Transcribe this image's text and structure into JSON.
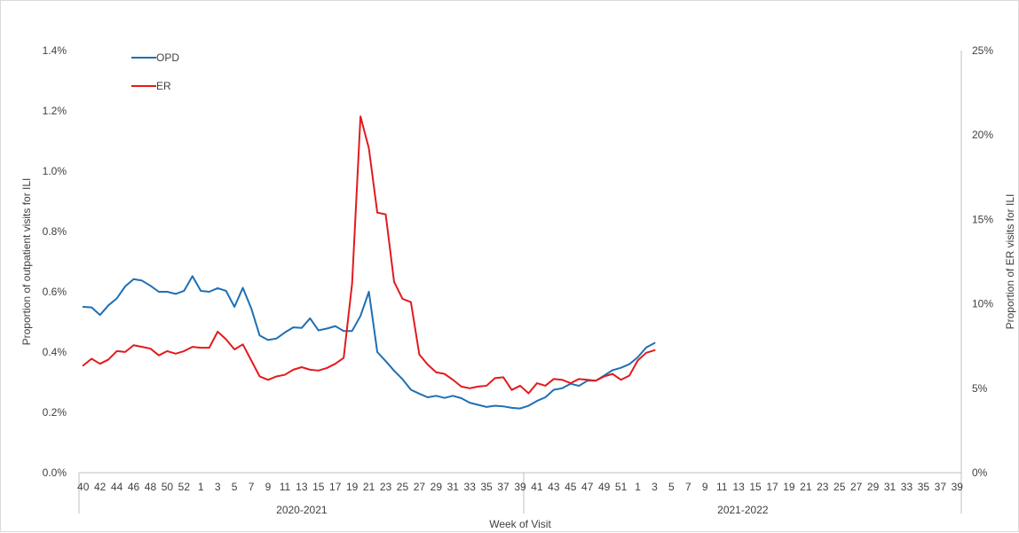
{
  "chart_data": {
    "type": "line",
    "title": "",
    "xlabel": "Week of Visit",
    "ylabel": "Proportion of outpatient visits for ILI",
    "y2label": "Proportion of ER visits for ILI",
    "ylim": [
      0,
      1.4
    ],
    "y2lim": [
      0,
      25
    ],
    "y_ticks": [
      "0.0%",
      "0.2%",
      "0.4%",
      "0.6%",
      "0.8%",
      "1.0%",
      "1.2%",
      "1.4%"
    ],
    "y2_ticks": [
      "0%",
      "5%",
      "10%",
      "15%",
      "20%",
      "25%"
    ],
    "x_tick_labels": [
      "40",
      "42",
      "44",
      "46",
      "48",
      "50",
      "52",
      "1",
      "3",
      "5",
      "7",
      "9",
      "11",
      "13",
      "15",
      "17",
      "19",
      "21",
      "23",
      "25",
      "27",
      "29",
      "31",
      "33",
      "35",
      "37",
      "39",
      "41",
      "43",
      "45",
      "47",
      "49",
      "51",
      "1",
      "3",
      "5",
      "7",
      "9",
      "11",
      "13",
      "15",
      "17",
      "19",
      "21",
      "23",
      "25",
      "27",
      "29",
      "31",
      "33",
      "35",
      "37",
      "39"
    ],
    "season_groups": [
      {
        "label": "2020-2021",
        "n_weeks": 53
      },
      {
        "label": "2021-2022",
        "n_weeks": 52
      }
    ],
    "total_weeks": 105,
    "grid": false,
    "legend_position": "top-left",
    "series": [
      {
        "name": "OPD",
        "axis": "left",
        "color": "#1f6fb4",
        "values": [
          0.55,
          0.548,
          0.523,
          0.555,
          0.578,
          0.618,
          0.642,
          0.637,
          0.62,
          0.6,
          0.6,
          0.593,
          0.603,
          0.652,
          0.603,
          0.6,
          0.612,
          0.603,
          0.55,
          0.613,
          0.545,
          0.455,
          0.44,
          0.445,
          0.465,
          0.482,
          0.48,
          0.512,
          0.472,
          0.478,
          0.486,
          0.47,
          0.47,
          0.52,
          0.6,
          0.4,
          0.37,
          0.338,
          0.31,
          0.275,
          0.262,
          0.25,
          0.255,
          0.248,
          0.255,
          0.247,
          0.232,
          0.225,
          0.218,
          0.222,
          0.22,
          0.215,
          0.213,
          0.222,
          0.238,
          0.25,
          0.275,
          0.28,
          0.295,
          0.288,
          0.305,
          0.305,
          0.322,
          0.34,
          0.348,
          0.36,
          0.383,
          0.415,
          0.43
        ]
      },
      {
        "name": "ER",
        "axis": "right",
        "color": "#e31a1c",
        "values": [
          6.35,
          6.75,
          6.45,
          6.7,
          7.2,
          7.15,
          7.55,
          7.45,
          7.35,
          6.95,
          7.2,
          7.05,
          7.2,
          7.45,
          7.4,
          7.4,
          8.35,
          7.9,
          7.3,
          7.6,
          6.65,
          5.7,
          5.5,
          5.7,
          5.8,
          6.1,
          6.25,
          6.1,
          6.05,
          6.2,
          6.45,
          6.8,
          11.2,
          21.1,
          19.2,
          15.4,
          15.3,
          11.3,
          10.3,
          10.1,
          7.0,
          6.4,
          5.95,
          5.85,
          5.5,
          5.1,
          5.0,
          5.1,
          5.15,
          5.6,
          5.65,
          4.9,
          5.15,
          4.7,
          5.3,
          5.15,
          5.55,
          5.5,
          5.3,
          5.55,
          5.5,
          5.45,
          5.7,
          5.85,
          5.5,
          5.75,
          6.65,
          7.1,
          7.25
        ]
      }
    ]
  }
}
